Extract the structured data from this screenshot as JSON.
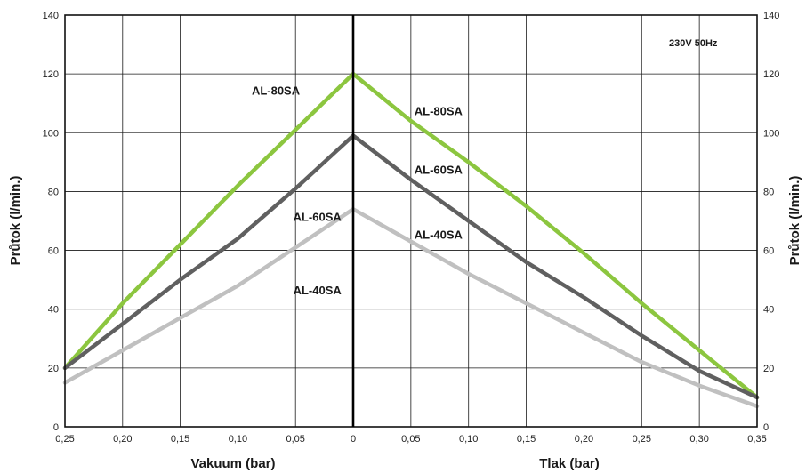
{
  "chart_data": {
    "type": "line",
    "note": "230V 50Hz",
    "y_label_left": "Průtok (l/min.)",
    "y_label_right": "Průtok (l/min.)",
    "x_label_left": "Vakuum (bar)",
    "x_label_right": "Tlak (bar)",
    "ylim": [
      0,
      140
    ],
    "y_ticks": [
      "0",
      "20",
      "40",
      "60",
      "80",
      "100",
      "120",
      "140"
    ],
    "vacuum_ticks": [
      "0,25",
      "0,20",
      "0,15",
      "0,10",
      "0,05",
      "0"
    ],
    "pressure_ticks": [
      "0,05",
      "0,10",
      "0,15",
      "0,20",
      "0,25",
      "0,30",
      "0,35"
    ],
    "vacuum_range_bar": [
      0.25,
      0
    ],
    "pressure_range_bar": [
      0,
      0.35
    ],
    "grid": true,
    "series": [
      {
        "name": "AL-80SA",
        "color": "#8cc63f",
        "vacuum": {
          "x": [
            0.25,
            0.2,
            0.15,
            0.1,
            0.05,
            0
          ],
          "y": [
            20,
            42,
            62,
            82,
            101,
            120
          ]
        },
        "pressure": {
          "x": [
            0,
            0.05,
            0.1,
            0.15,
            0.2,
            0.25,
            0.3,
            0.35
          ],
          "y": [
            120,
            104,
            90,
            75,
            59,
            42,
            26,
            10
          ]
        }
      },
      {
        "name": "AL-60SA",
        "color": "#606060",
        "vacuum": {
          "x": [
            0.25,
            0.2,
            0.15,
            0.1,
            0.05,
            0
          ],
          "y": [
            20,
            35,
            50,
            64,
            81,
            99
          ]
        },
        "pressure": {
          "x": [
            0,
            0.05,
            0.1,
            0.15,
            0.2,
            0.25,
            0.3,
            0.35
          ],
          "y": [
            99,
            84,
            70,
            56,
            44,
            31,
            19,
            10
          ]
        }
      },
      {
        "name": "AL-40SA",
        "color": "#c0c0c0",
        "vacuum": {
          "x": [
            0.25,
            0.2,
            0.15,
            0.1,
            0.05,
            0
          ],
          "y": [
            15,
            26,
            37,
            48,
            61,
            74
          ]
        },
        "pressure": {
          "x": [
            0,
            0.05,
            0.1,
            0.15,
            0.2,
            0.25,
            0.3,
            0.35
          ],
          "y": [
            74,
            63,
            52,
            42,
            32,
            22,
            14,
            7
          ]
        }
      }
    ],
    "labels": [
      {
        "text": "AL-80SA",
        "side": "vacuum",
        "x": 0.088,
        "y": 113
      },
      {
        "text": "AL-80SA",
        "side": "pressure",
        "x": 0.053,
        "y": 106
      },
      {
        "text": "AL-60SA",
        "side": "vacuum",
        "x": 0.052,
        "y": 70
      },
      {
        "text": "AL-60SA",
        "side": "pressure",
        "x": 0.053,
        "y": 86
      },
      {
        "text": "AL-40SA",
        "side": "vacuum",
        "x": 0.052,
        "y": 45
      },
      {
        "text": "AL-40SA",
        "side": "pressure",
        "x": 0.053,
        "y": 64
      }
    ]
  }
}
